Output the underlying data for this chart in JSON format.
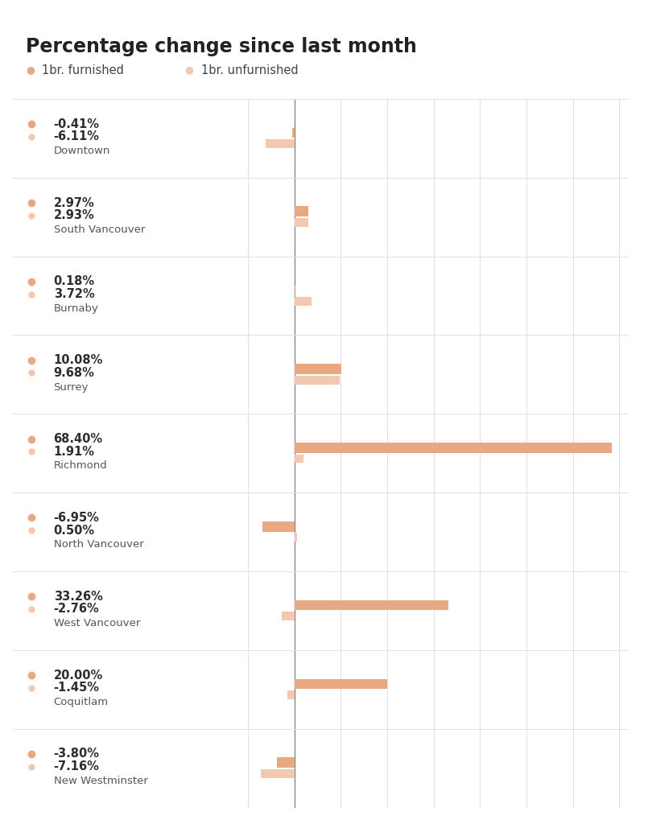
{
  "title": "Percentage change since last month",
  "legend_furnished": "1br. furnished",
  "legend_unfurnished": "1br. unfurnished",
  "categories": [
    "Downtown",
    "South Vancouver",
    "Burnaby",
    "Surrey",
    "Richmond",
    "North Vancouver",
    "West Vancouver",
    "Coquitlam",
    "New Westminster"
  ],
  "furnished": [
    -0.41,
    2.97,
    0.18,
    10.08,
    68.4,
    -6.95,
    33.26,
    20.0,
    -3.8
  ],
  "unfurnished": [
    -6.11,
    2.93,
    3.72,
    9.68,
    1.91,
    0.5,
    -2.76,
    -1.45,
    -7.16
  ],
  "color_furnished": "#e8a882",
  "color_unfurnished": "#f2c9b0",
  "zero_line_color": "#888888",
  "grid_color": "#e0e0e0",
  "background_color": "#ffffff",
  "title_fontsize": 17,
  "pct_fontsize": 10.5,
  "neighborhood_fontsize": 9.5,
  "legend_fontsize": 10.5,
  "xlim": [
    -12,
    72
  ]
}
